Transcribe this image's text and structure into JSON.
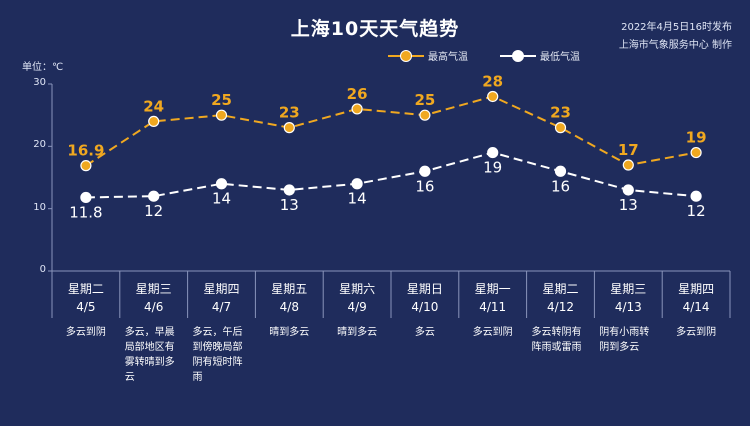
{
  "header": {
    "title": "上海10天天气趋势",
    "publish_time": "2022年4月5日16时发布",
    "publisher": "上海市气象服务中心 制作",
    "unit_label": "单位：℃"
  },
  "legend": {
    "high_label": "最高气温",
    "low_label": "最低气温"
  },
  "colors": {
    "background": "#1f2c5c",
    "high_line": "#f0a820",
    "low_line": "#ffffff",
    "grid": "#8a95bb"
  },
  "chart_data": {
    "type": "line",
    "title": "上海10天天气趋势",
    "ylabel": "单位：℃",
    "ylim": [
      0,
      30
    ],
    "yticks": [
      "0",
      "10",
      "20",
      "30"
    ],
    "grid": false,
    "legend_position": "top-center",
    "categories": [
      "4/5",
      "4/6",
      "4/7",
      "4/8",
      "4/9",
      "4/10",
      "4/11",
      "4/12",
      "4/13",
      "4/14"
    ],
    "series": [
      {
        "name": "最高气温",
        "values": [
          16.9,
          24,
          25,
          23,
          26,
          25,
          28,
          23,
          17,
          19
        ],
        "labels": [
          "16.9",
          "24",
          "25",
          "23",
          "26",
          "25",
          "28",
          "23",
          "17",
          "19"
        ]
      },
      {
        "name": "最低气温",
        "values": [
          11.8,
          12,
          14,
          13,
          14,
          16,
          19,
          16,
          13,
          12
        ],
        "labels": [
          "11.8",
          "12",
          "14",
          "13",
          "14",
          "16",
          "19",
          "16",
          "13",
          "12"
        ]
      }
    ]
  },
  "days": [
    {
      "weekday": "星期二",
      "date": "4/5",
      "desc": "多云到阴"
    },
    {
      "weekday": "星期三",
      "date": "4/6",
      "desc": "多云，早晨局部地区有雾转晴到多云"
    },
    {
      "weekday": "星期四",
      "date": "4/7",
      "desc": "多云，午后到傍晚局部阴有短时阵雨"
    },
    {
      "weekday": "星期五",
      "date": "4/8",
      "desc": "晴到多云"
    },
    {
      "weekday": "星期六",
      "date": "4/9",
      "desc": "晴到多云"
    },
    {
      "weekday": "星期日",
      "date": "4/10",
      "desc": "多云"
    },
    {
      "weekday": "星期一",
      "date": "4/11",
      "desc": "多云到阴"
    },
    {
      "weekday": "星期二",
      "date": "4/12",
      "desc": "多云转阴有阵雨或雷雨"
    },
    {
      "weekday": "星期三",
      "date": "4/13",
      "desc": "阴有小雨转阴到多云"
    },
    {
      "weekday": "星期四",
      "date": "4/14",
      "desc": "多云到阴"
    }
  ]
}
